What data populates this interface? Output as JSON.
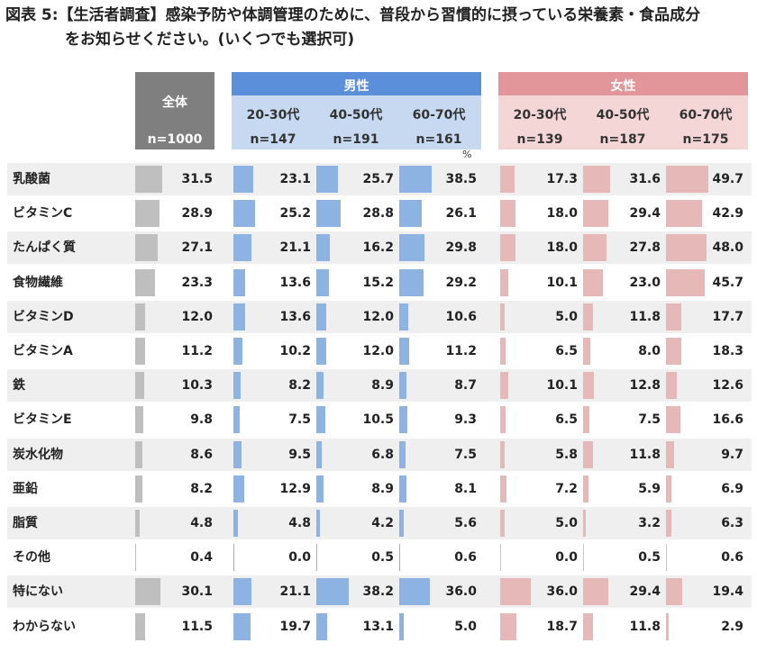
{
  "title": {
    "line1": "図表 5:【生活者調査】感染予防や体調管理のために、普段から習慣的に摂っている栄養素・食品成分",
    "line2": "をお知らせください。(いくつでも選択可)"
  },
  "unit_label": "%",
  "colors": {
    "total_header": "#7f7f7f",
    "male_header": "#5b8fd9",
    "female_header": "#e3969a",
    "total_bar": "#bfbfbf",
    "male_bar": "#8db3e2",
    "female_bar": "#e6b9b8"
  },
  "chart_data": {
    "type": "table",
    "title": "図表 5:【生活者調査】感染予防や体調管理のために、普段から習慣的に摂っている栄養素・食品成分をお知らせください。(いくつでも選択可)",
    "groups": [
      {
        "name": "全体",
        "columns": [
          {
            "label": "",
            "n": "n=1000"
          }
        ]
      },
      {
        "name": "男性",
        "columns": [
          {
            "label": "20-30代",
            "n": "n=147"
          },
          {
            "label": "40-50代",
            "n": "n=191"
          },
          {
            "label": "60-70代",
            "n": "n=161"
          }
        ]
      },
      {
        "name": "女性",
        "columns": [
          {
            "label": "20-30代",
            "n": "n=139"
          },
          {
            "label": "40-50代",
            "n": "n=187"
          },
          {
            "label": "60-70代",
            "n": "n=175"
          }
        ]
      }
    ],
    "categories": [
      "乳酸菌",
      "ビタミンC",
      "たんぱく質",
      "食物繊維",
      "ビタミンD",
      "ビタミンA",
      "鉄",
      "ビタミンE",
      "炭水化物",
      "亜鉛",
      "脂質",
      "その他",
      "特にない",
      "わからない"
    ],
    "series": [
      {
        "name": "全体",
        "values": [
          31.5,
          28.9,
          27.1,
          23.3,
          12.0,
          11.2,
          10.3,
          9.8,
          8.6,
          8.2,
          4.8,
          0.4,
          30.1,
          11.5
        ]
      },
      {
        "name": "男性 20-30代",
        "values": [
          23.1,
          25.2,
          21.1,
          13.6,
          13.6,
          10.2,
          8.2,
          7.5,
          9.5,
          12.9,
          4.8,
          0.0,
          21.1,
          19.7
        ]
      },
      {
        "name": "男性 40-50代",
        "values": [
          25.7,
          28.8,
          16.2,
          15.2,
          12.0,
          12.0,
          8.9,
          10.5,
          6.8,
          8.9,
          4.2,
          0.5,
          38.2,
          13.1
        ]
      },
      {
        "name": "男性 60-70代",
        "values": [
          38.5,
          26.1,
          29.8,
          29.2,
          10.6,
          11.2,
          8.7,
          9.3,
          7.5,
          8.1,
          5.6,
          0.6,
          36.0,
          5.0
        ]
      },
      {
        "name": "女性 20-30代",
        "values": [
          17.3,
          18.0,
          18.0,
          10.1,
          5.0,
          6.5,
          10.1,
          6.5,
          5.8,
          7.2,
          5.0,
          0.0,
          36.0,
          18.7
        ]
      },
      {
        "name": "女性 40-50代",
        "values": [
          31.6,
          29.4,
          27.8,
          23.0,
          11.8,
          8.0,
          12.8,
          7.5,
          11.8,
          5.9,
          3.2,
          0.5,
          29.4,
          11.8
        ]
      },
      {
        "name": "女性 60-70代",
        "values": [
          49.7,
          42.9,
          48.0,
          45.7,
          17.7,
          18.3,
          12.6,
          16.6,
          9.7,
          6.9,
          6.3,
          0.6,
          19.4,
          2.9
        ]
      }
    ]
  }
}
